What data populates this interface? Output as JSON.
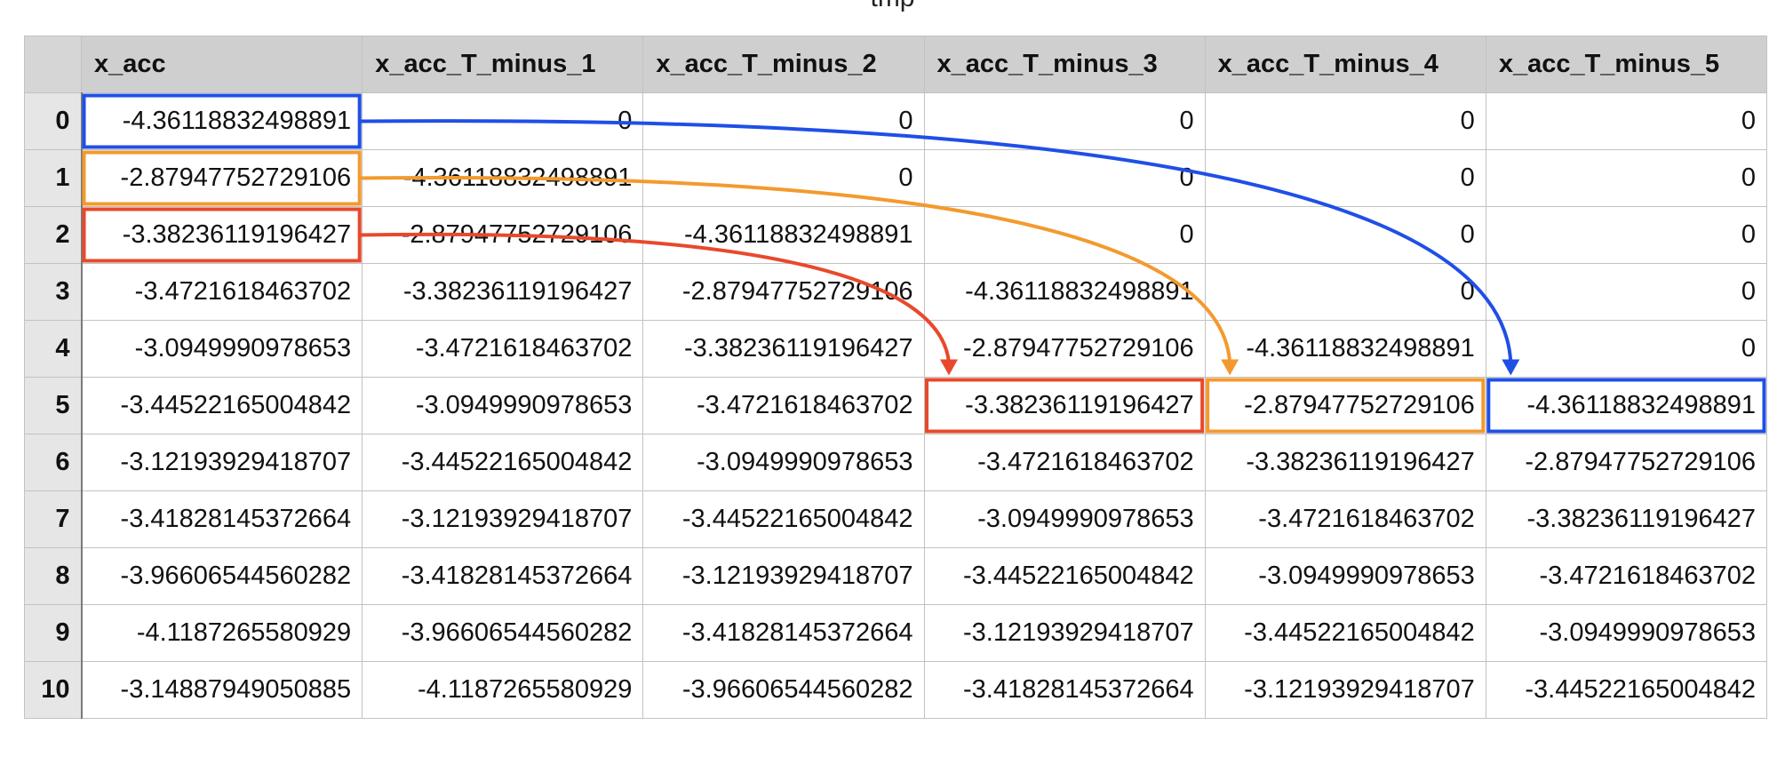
{
  "title": "tmp",
  "columns": [
    "",
    "x_acc",
    "x_acc_T_minus_1",
    "x_acc_T_minus_2",
    "x_acc_T_minus_3",
    "x_acc_T_minus_4",
    "x_acc_T_minus_5"
  ],
  "rows": [
    {
      "index": "0",
      "cells": [
        "-4.36118832498891",
        "0",
        "0",
        "0",
        "0",
        "0"
      ]
    },
    {
      "index": "1",
      "cells": [
        "-2.87947752729106",
        "-4.36118832498891",
        "0",
        "0",
        "0",
        "0"
      ]
    },
    {
      "index": "2",
      "cells": [
        "-3.38236119196427",
        "-2.87947752729106",
        "-4.36118832498891",
        "0",
        "0",
        "0"
      ]
    },
    {
      "index": "3",
      "cells": [
        "-3.4721618463702",
        "-3.38236119196427",
        "-2.87947752729106",
        "-4.36118832498891",
        "0",
        "0"
      ]
    },
    {
      "index": "4",
      "cells": [
        "-3.0949990978653",
        "-3.4721618463702",
        "-3.38236119196427",
        "-2.87947752729106",
        "-4.36118832498891",
        "0"
      ]
    },
    {
      "index": "5",
      "cells": [
        "-3.44522165004842",
        "-3.0949990978653",
        "-3.4721618463702",
        "-3.38236119196427",
        "-2.87947752729106",
        "-4.36118832498891"
      ]
    },
    {
      "index": "6",
      "cells": [
        "-3.12193929418707",
        "-3.44522165004842",
        "-3.0949990978653",
        "-3.4721618463702",
        "-3.38236119196427",
        "-2.87947752729106"
      ]
    },
    {
      "index": "7",
      "cells": [
        "-3.41828145372664",
        "-3.12193929418707",
        "-3.44522165004842",
        "-3.0949990978653",
        "-3.4721618463702",
        "-3.38236119196427"
      ]
    },
    {
      "index": "8",
      "cells": [
        "-3.96606544560282",
        "-3.41828145372664",
        "-3.12193929418707",
        "-3.44522165004842",
        "-3.0949990978653",
        "-3.4721618463702"
      ]
    },
    {
      "index": "9",
      "cells": [
        "-4.1187265580929",
        "-3.96606544560282",
        "-3.41828145372664",
        "-3.12193929418707",
        "-3.44522165004842",
        "-3.0949990978653"
      ]
    },
    {
      "index": "10",
      "cells": [
        "-3.14887949050885",
        "-4.1187265580929",
        "-3.96606544560282",
        "-3.41828145372664",
        "-3.12193929418707",
        "-3.44522165004842"
      ]
    }
  ],
  "highlights": [
    {
      "color": "#1f4fe6",
      "from": {
        "row": 0,
        "col": 0
      },
      "to": {
        "row": 5,
        "col": 5
      }
    },
    {
      "color": "#f39a2e",
      "from": {
        "row": 1,
        "col": 0
      },
      "to": {
        "row": 5,
        "col": 4
      }
    },
    {
      "color": "#e8492b",
      "from": {
        "row": 2,
        "col": 0
      },
      "to": {
        "row": 5,
        "col": 3
      }
    }
  ]
}
